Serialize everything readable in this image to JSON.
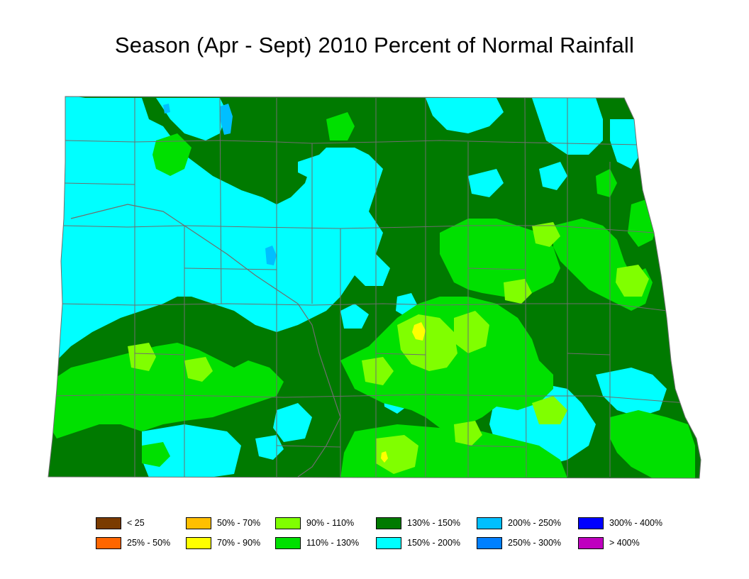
{
  "title": "Season (Apr - Sept) 2010 Percent of Normal Rainfall",
  "colors": {
    "c130_150": "#007a00",
    "c150_200": "#00ffff",
    "c110_130": "#00e000",
    "c90_110": "#80ff00",
    "c70_90": "#ffff00",
    "c200_250": "#00bfff",
    "boundary": "#6e6e6e"
  },
  "legend": [
    {
      "label": "< 25",
      "color": "#7a3b00"
    },
    {
      "label": "25% - 50%",
      "color": "#ff6600"
    },
    {
      "label": "50% - 70%",
      "color": "#ffbf00"
    },
    {
      "label": "70% - 90%",
      "color": "#ffff00"
    },
    {
      "label": "90% - 110%",
      "color": "#80ff00"
    },
    {
      "label": "110% - 130%",
      "color": "#00e000"
    },
    {
      "label": "130% - 150%",
      "color": "#007a00"
    },
    {
      "label": "150% - 200%",
      "color": "#00ffff"
    },
    {
      "label": "200% - 250%",
      "color": "#00bfff"
    },
    {
      "label": "250% - 300%",
      "color": "#0080ff"
    },
    {
      "label": "300% - 400%",
      "color": "#0000ff"
    },
    {
      "label": "> 400%",
      "color": "#bf00bf"
    }
  ]
}
